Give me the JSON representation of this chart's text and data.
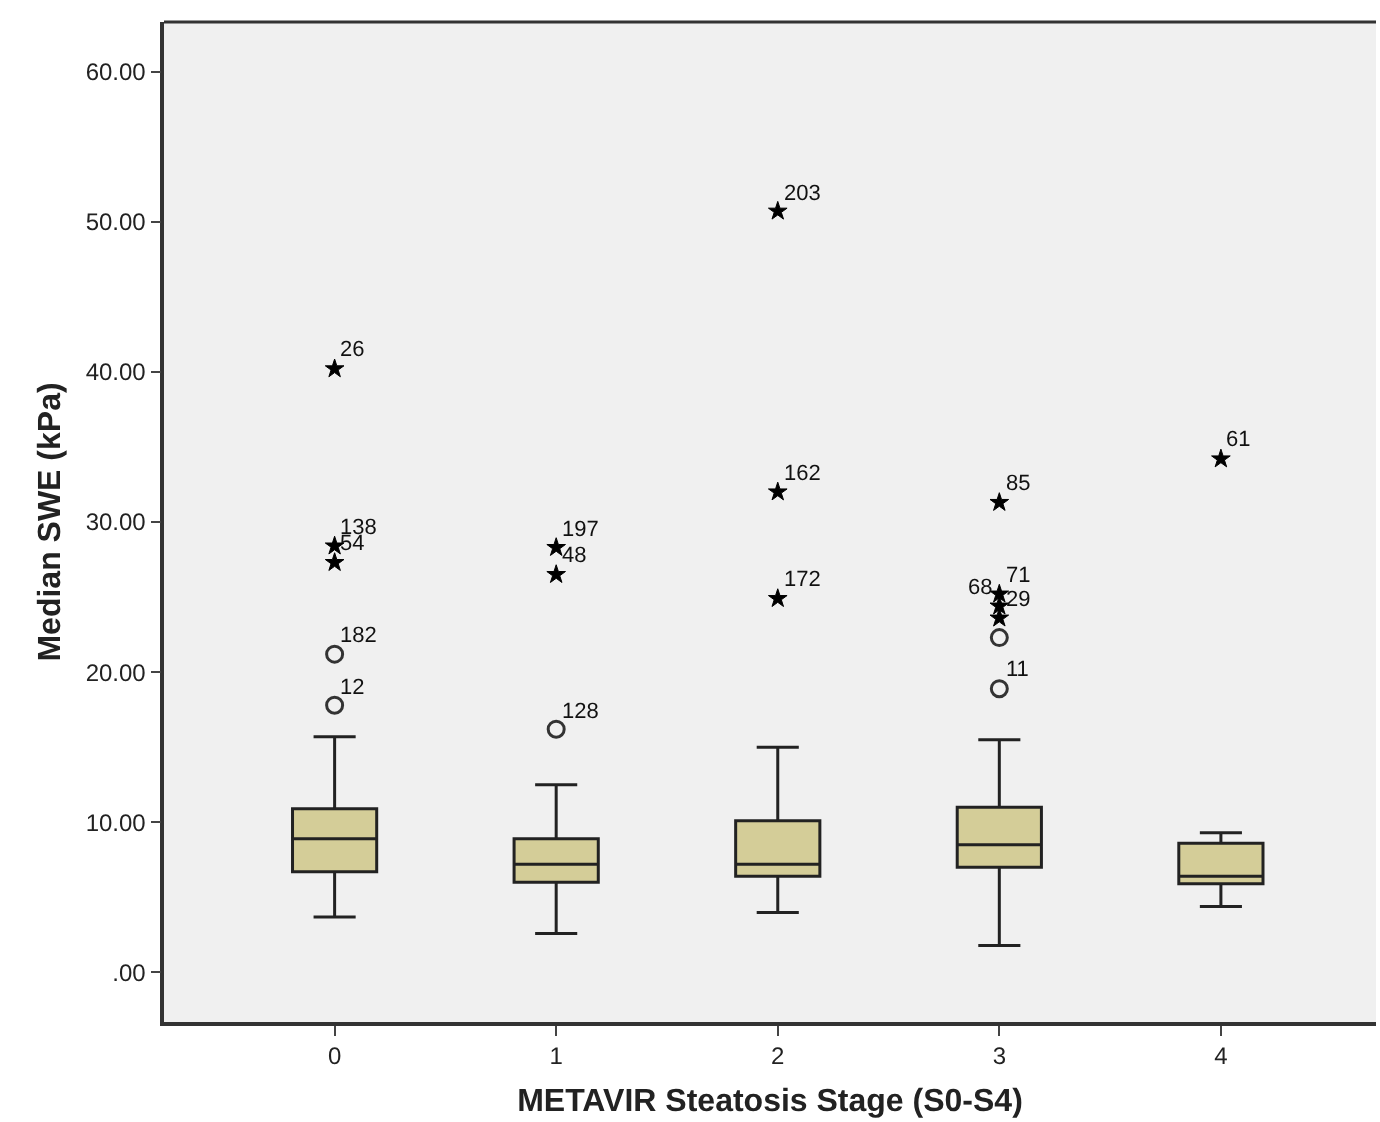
{
  "chart_data": {
    "type": "box",
    "xlabel": "METAVIR Steatosis Stage (S0-S4)",
    "ylabel": "Median SWE (kPa)",
    "categories": [
      "0",
      "1",
      "2",
      "3",
      "4"
    ],
    "ylim": [
      -3.3,
      63.3
    ],
    "yticks": [
      {
        "value": 0,
        "label": ".00"
      },
      {
        "value": 10,
        "label": "10.00"
      },
      {
        "value": 20,
        "label": "20.00"
      },
      {
        "value": 30,
        "label": "30.00"
      },
      {
        "value": 40,
        "label": "40.00"
      },
      {
        "value": 50,
        "label": "50.00"
      },
      {
        "value": 60,
        "label": "60.00"
      }
    ],
    "grid": false,
    "series": [
      {
        "color": "#d4cd98",
        "boxes": [
          {
            "low": 3.7,
            "q1": 6.7,
            "median": 8.9,
            "q3": 10.9,
            "high": 15.7
          },
          {
            "low": 2.6,
            "q1": 6.0,
            "median": 7.2,
            "q3": 8.9,
            "high": 12.5
          },
          {
            "low": 4.0,
            "q1": 6.4,
            "median": 7.2,
            "q3": 10.1,
            "high": 15.0
          },
          {
            "low": 1.8,
            "q1": 7.0,
            "median": 8.5,
            "q3": 11.0,
            "high": 15.5
          },
          {
            "low": 4.4,
            "q1": 5.9,
            "median": 6.4,
            "q3": 8.6,
            "high": 9.3
          }
        ]
      },
      {
        "type": "scatter",
        "marker": "circle",
        "color": "#333333",
        "x": [
          "0",
          "0",
          "1",
          "3",
          "3"
        ],
        "values": [
          21.2,
          17.8,
          16.2,
          22.3,
          18.9
        ]
      },
      {
        "type": "scatter",
        "marker": "star",
        "color": "#000000",
        "x": [
          "0",
          "0",
          "0",
          "1",
          "1",
          "2",
          "2",
          "2",
          "3",
          "3",
          "3",
          "3",
          "4"
        ],
        "values": [
          40.2,
          28.4,
          27.3,
          28.3,
          26.5,
          50.7,
          32.0,
          24.9,
          31.3,
          25.2,
          24.4,
          23.6,
          34.2
        ]
      }
    ],
    "annotations": [
      {
        "text": "26",
        "x": "0",
        "y": 40.2
      },
      {
        "text": "138",
        "x": "0",
        "y": 28.4
      },
      {
        "text": "54",
        "x": "0",
        "y": 27.3
      },
      {
        "text": "182",
        "x": "0",
        "y": 21.2
      },
      {
        "text": "12",
        "x": "0",
        "y": 17.8
      },
      {
        "text": "197",
        "x": "1",
        "y": 28.3
      },
      {
        "text": "48",
        "x": "1",
        "y": 26.5
      },
      {
        "text": "128",
        "x": "1",
        "y": 16.2
      },
      {
        "text": "203",
        "x": "2",
        "y": 50.7
      },
      {
        "text": "162",
        "x": "2",
        "y": 32.0
      },
      {
        "text": "172",
        "x": "2",
        "y": 24.9
      },
      {
        "text": "85",
        "x": "3",
        "y": 31.3
      },
      {
        "text": "71",
        "x": "3",
        "y": 25.2
      },
      {
        "text": "68",
        "x": "3",
        "y": 24.4
      },
      {
        "text": "29",
        "x": "3",
        "y": 23.6
      },
      {
        "text": "11",
        "x": "3",
        "y": 18.9
      },
      {
        "text": "61",
        "x": "4",
        "y": 34.2
      }
    ]
  }
}
